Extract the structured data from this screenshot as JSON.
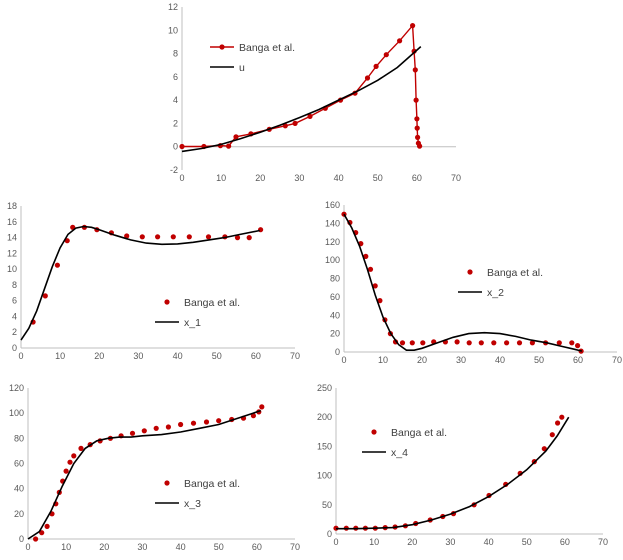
{
  "colors": {
    "marker": "#c00000",
    "line": "#000000",
    "axis": "#bfbfbf",
    "text": "#595959"
  },
  "chart_data": [
    {
      "id": "u",
      "type": "scatter",
      "xlim": [
        0,
        70
      ],
      "ylim": [
        -2,
        12
      ],
      "xticks": [
        0,
        10,
        20,
        30,
        40,
        50,
        60,
        70
      ],
      "yticks": [
        -2,
        0,
        2,
        4,
        6,
        8,
        10,
        12
      ],
      "legend_position": "top-left",
      "series": [
        {
          "name": "Banga et al.",
          "style": "line+markers",
          "x": [
            0,
            5.6,
            9.8,
            11.9,
            13.8,
            17.6,
            22.3,
            26.4,
            28.9,
            32.7,
            36.6,
            40.5,
            44.2,
            47.4,
            49.6,
            52.2,
            55.6,
            58.9,
            59.3,
            59.6,
            59.8,
            60.0,
            60.1,
            60.2,
            60.4,
            60.7
          ],
          "y": [
            0.02,
            0.02,
            0.1,
            0.05,
            0.85,
            1.1,
            1.5,
            1.8,
            2.0,
            2.6,
            3.3,
            4.0,
            4.6,
            5.9,
            6.9,
            7.9,
            9.1,
            10.4,
            8.2,
            6.6,
            4.0,
            2.4,
            1.6,
            0.8,
            0.3,
            0.05
          ]
        },
        {
          "name": "u",
          "style": "line",
          "x": [
            0,
            5,
            10,
            15,
            20,
            25,
            30,
            35,
            40,
            45,
            50,
            55,
            58,
            61
          ],
          "y": [
            -0.4,
            -0.15,
            0.2,
            0.7,
            1.25,
            1.85,
            2.5,
            3.2,
            4.0,
            4.8,
            5.7,
            6.8,
            7.7,
            8.6
          ]
        }
      ]
    },
    {
      "id": "x_1",
      "type": "scatter",
      "xlim": [
        0,
        70
      ],
      "ylim": [
        0,
        18
      ],
      "xticks": [
        0,
        10,
        20,
        30,
        40,
        50,
        60,
        70
      ],
      "yticks": [
        0,
        2,
        4,
        6,
        8,
        10,
        12,
        14,
        16,
        18
      ],
      "legend_position": "bottom-center",
      "series": [
        {
          "name": "Banga et al.",
          "style": "markers",
          "x": [
            3.1,
            6.2,
            9.3,
            11.8,
            13.2,
            16.2,
            19.4,
            23.1,
            27.0,
            31.0,
            34.9,
            38.9,
            43.0,
            47.9,
            52.1,
            55.3,
            58.3,
            61.2
          ],
          "y": [
            3.3,
            6.6,
            10.5,
            13.6,
            15.3,
            15.3,
            15.0,
            14.6,
            14.2,
            14.1,
            14.1,
            14.1,
            14.1,
            14.1,
            14.1,
            14.0,
            14.0,
            15.0
          ]
        },
        {
          "name": "x_1",
          "style": "line",
          "x": [
            0,
            2,
            4,
            6,
            8,
            10,
            12,
            14,
            16,
            18,
            20,
            24,
            28,
            32,
            36,
            40,
            44,
            48,
            52,
            56,
            61
          ],
          "y": [
            1.0,
            2.5,
            4.7,
            7.5,
            10.3,
            12.7,
            14.4,
            15.2,
            15.4,
            15.3,
            15.0,
            14.3,
            13.7,
            13.3,
            13.15,
            13.2,
            13.4,
            13.7,
            14.0,
            14.4,
            14.9
          ]
        }
      ]
    },
    {
      "id": "x_2",
      "type": "scatter",
      "xlim": [
        0,
        70
      ],
      "ylim": [
        0,
        160
      ],
      "xticks": [
        0,
        10,
        20,
        30,
        40,
        50,
        60,
        70
      ],
      "yticks": [
        0,
        20,
        40,
        60,
        80,
        100,
        120,
        140,
        160
      ],
      "legend_position": "right",
      "series": [
        {
          "name": "Banga et al.",
          "style": "markers",
          "x": [
            0,
            1.5,
            3.0,
            4.3,
            5.6,
            6.8,
            8.0,
            9.2,
            10.5,
            11.9,
            13.2,
            15.0,
            17.5,
            20.2,
            23.0,
            26.0,
            29.0,
            32.1,
            35.2,
            38.4,
            41.7,
            45.0,
            48.3,
            51.7,
            55.2,
            58.4,
            59.9,
            60.8
          ],
          "y": [
            150,
            141,
            130,
            118,
            104,
            90,
            72,
            56,
            35,
            20,
            11,
            10,
            10,
            10,
            11,
            11,
            11,
            10,
            10,
            10,
            10,
            10,
            10,
            10,
            10,
            10,
            7,
            1
          ]
        },
        {
          "name": "x_2",
          "style": "line",
          "x": [
            0,
            2,
            4,
            6,
            8,
            10,
            12,
            14,
            16,
            18,
            20,
            24,
            28,
            32,
            36,
            40,
            44,
            48,
            52,
            56,
            59,
            61
          ],
          "y": [
            150,
            135,
            115,
            90,
            62,
            38,
            20,
            8,
            2,
            2,
            4,
            10,
            16,
            20,
            21,
            20,
            17,
            13,
            10,
            6,
            3,
            1
          ]
        }
      ]
    },
    {
      "id": "x_3",
      "type": "scatter",
      "xlim": [
        0,
        70
      ],
      "ylim": [
        0,
        120
      ],
      "xticks": [
        0,
        10,
        20,
        30,
        40,
        50,
        60,
        70
      ],
      "yticks": [
        0,
        20,
        40,
        60,
        80,
        100,
        120
      ],
      "legend_position": "bottom-center",
      "series": [
        {
          "name": "Banga et al.",
          "style": "markers",
          "x": [
            2.0,
            3.6,
            5.0,
            6.3,
            7.3,
            8.2,
            9.1,
            10.0,
            11.0,
            12.0,
            13.9,
            16.3,
            18.9,
            21.6,
            24.4,
            27.4,
            30.5,
            33.6,
            36.8,
            40.0,
            43.4,
            46.8,
            50.0,
            53.4,
            56.5,
            59.1,
            60.5,
            61.3
          ],
          "y": [
            0,
            5,
            10,
            20,
            28,
            37,
            46,
            54,
            61,
            66,
            72,
            75,
            78,
            80,
            82,
            84,
            86,
            88,
            89,
            91,
            92,
            93,
            94,
            95,
            96,
            98,
            101,
            105
          ]
        },
        {
          "name": "x_3",
          "style": "line",
          "x": [
            0,
            3,
            6,
            9,
            12,
            15,
            18,
            21,
            24,
            27,
            30,
            35,
            40,
            45,
            50,
            55,
            59,
            61
          ],
          "y": [
            0,
            6,
            22,
            42,
            60,
            72,
            78,
            80,
            81,
            81,
            82,
            83,
            85,
            88,
            91,
            96,
            100,
            102
          ]
        }
      ]
    },
    {
      "id": "x_4",
      "type": "scatter",
      "xlim": [
        0,
        70
      ],
      "ylim": [
        0,
        250
      ],
      "xticks": [
        0,
        10,
        20,
        30,
        40,
        50,
        60,
        70
      ],
      "yticks": [
        0,
        50,
        100,
        150,
        200,
        250
      ],
      "legend_position": "top-center",
      "series": [
        {
          "name": "Banga et al.",
          "style": "markers",
          "x": [
            0,
            2.7,
            5.2,
            7.7,
            10.3,
            12.9,
            15.5,
            18.2,
            20.9,
            24.7,
            28.0,
            30.8,
            36.2,
            40.1,
            44.5,
            48.3,
            52.0,
            54.6,
            56.7,
            58.1,
            59.2
          ],
          "y": [
            10,
            10,
            10,
            10,
            10,
            11,
            12,
            14,
            18,
            24,
            30,
            35,
            50,
            66,
            85,
            104,
            124,
            146,
            170,
            190,
            200
          ]
        },
        {
          "name": "x_4",
          "style": "line",
          "x": [
            0,
            5,
            10,
            15,
            20,
            25,
            30,
            35,
            40,
            45,
            50,
            55,
            58,
            61
          ],
          "y": [
            9,
            9,
            10,
            11,
            16,
            24,
            34,
            47,
            64,
            85,
            110,
            142,
            168,
            200
          ]
        }
      ]
    }
  ]
}
